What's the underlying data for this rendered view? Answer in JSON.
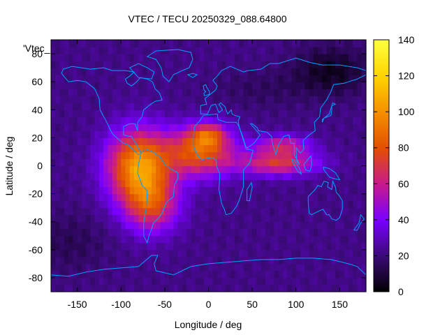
{
  "chart_data": {
    "type": "heatmap",
    "title": "VTEC / TECU 20250329_088.64800",
    "xlabel": "Longitude / deg",
    "ylabel": "Latitude / deg",
    "series_label": "'Vtec_",
    "xlim": [
      -180,
      180
    ],
    "ylim": [
      -90,
      90
    ],
    "xticks": [
      -150,
      -100,
      -50,
      0,
      50,
      100,
      150
    ],
    "yticks": [
      -80,
      -60,
      -40,
      -20,
      0,
      20,
      40,
      60,
      80
    ],
    "xtick_labels": [
      "-150",
      "-100",
      "-50",
      "0",
      "50",
      "100",
      "150"
    ],
    "ytick_labels": [
      "-80",
      "-60",
      "-40",
      "-20",
      "0",
      "20",
      "40",
      "60",
      "80"
    ],
    "colorbar": {
      "range": [
        0,
        140
      ],
      "ticks": [
        0,
        20,
        40,
        60,
        80,
        100,
        120,
        140
      ],
      "tick_labels": [
        "0",
        "20",
        "40",
        "60",
        "80",
        "100",
        "120",
        "140"
      ],
      "palette": [
        "#000000",
        "#3b0a78",
        "#7a00ff",
        "#c81a8c",
        "#e25000",
        "#f59000",
        "#ffd400",
        "#ffff40"
      ]
    },
    "grid_resolution_deg": 5,
    "background_vtec": 22,
    "features": [
      {
        "name": "South American crest",
        "lon": -80,
        "lat": 0,
        "peak_vtec": 110
      },
      {
        "name": "South American southern lobe",
        "lon": -70,
        "lat": -25,
        "peak_vtec": 85
      },
      {
        "name": "Atlantic-Africa equatorial band",
        "lon": -10,
        "lat": 12,
        "peak_vtec": 95
      },
      {
        "name": "Africa northern crest",
        "lon": 0,
        "lat": 22,
        "peak_vtec": 80
      },
      {
        "name": "Indian Ocean band",
        "lon": 75,
        "lat": 0,
        "peak_vtec": 80
      },
      {
        "name": "South Asia band",
        "lon": 85,
        "lat": 15,
        "peak_vtec": 75
      },
      {
        "name": "Northern Pacific minimum",
        "lon": 140,
        "lat": 65,
        "peak_vtec": 8
      },
      {
        "name": "Southern ocean minimum",
        "lon": -160,
        "lat": -55,
        "peak_vtec": 15
      }
    ]
  }
}
